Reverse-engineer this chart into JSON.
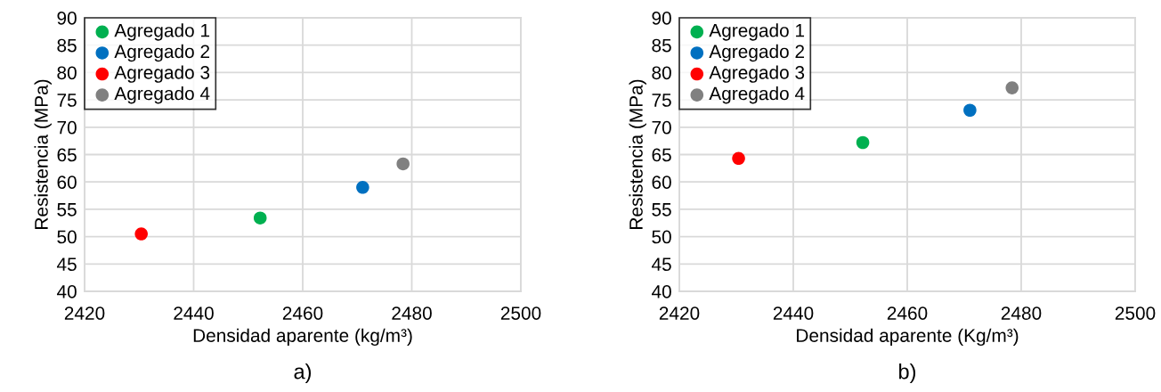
{
  "chart_data": [
    {
      "type": "scatter",
      "xlabel": "Densidad aparente (kg/m³)",
      "ylabel": "Resistencia (MPa)",
      "annotations": [
        "a)"
      ],
      "xlim": [
        2420,
        2500
      ],
      "xticks": [
        2420,
        2440,
        2460,
        2480,
        2500
      ],
      "ylim": [
        40,
        90
      ],
      "yticks": [
        40,
        45,
        50,
        55,
        60,
        65,
        70,
        75,
        80,
        85,
        90
      ],
      "grid": true,
      "legend": "top left",
      "marker": "circle",
      "series": [
        {
          "name": "Agregado 1",
          "color": "#00b050",
          "x": [
            2452.2
          ],
          "values": [
            53.4
          ]
        },
        {
          "name": "Agregado 2",
          "color": "#0070c0",
          "x": [
            2471.0
          ],
          "values": [
            59.0
          ]
        },
        {
          "name": "Agregado 3",
          "color": "#ff0000",
          "x": [
            2430.4
          ],
          "values": [
            50.5
          ]
        },
        {
          "name": "Agregado 4",
          "color": "#808080",
          "x": [
            2478.4
          ],
          "values": [
            63.3
          ]
        }
      ]
    },
    {
      "type": "scatter",
      "xlabel": "Densidad aparente (Kg/m³)",
      "ylabel": "Resistencia (MPa)",
      "annotations": [
        "b)"
      ],
      "xlim": [
        2420,
        2500
      ],
      "xticks": [
        2420,
        2440,
        2460,
        2480,
        2500
      ],
      "ylim": [
        40,
        90
      ],
      "yticks": [
        40,
        45,
        50,
        55,
        60,
        65,
        70,
        75,
        80,
        85,
        90
      ],
      "grid": true,
      "legend": "top left",
      "marker": "circle",
      "series": [
        {
          "name": "Agregado 1",
          "color": "#00b050",
          "x": [
            2452.2
          ],
          "values": [
            67.2
          ]
        },
        {
          "name": "Agregado 2",
          "color": "#0070c0",
          "x": [
            2471.0
          ],
          "values": [
            73.1
          ]
        },
        {
          "name": "Agregado 3",
          "color": "#ff0000",
          "x": [
            2430.4
          ],
          "values": [
            64.3
          ]
        },
        {
          "name": "Agregado 4",
          "color": "#808080",
          "x": [
            2478.4
          ],
          "values": [
            77.2
          ]
        }
      ]
    }
  ]
}
